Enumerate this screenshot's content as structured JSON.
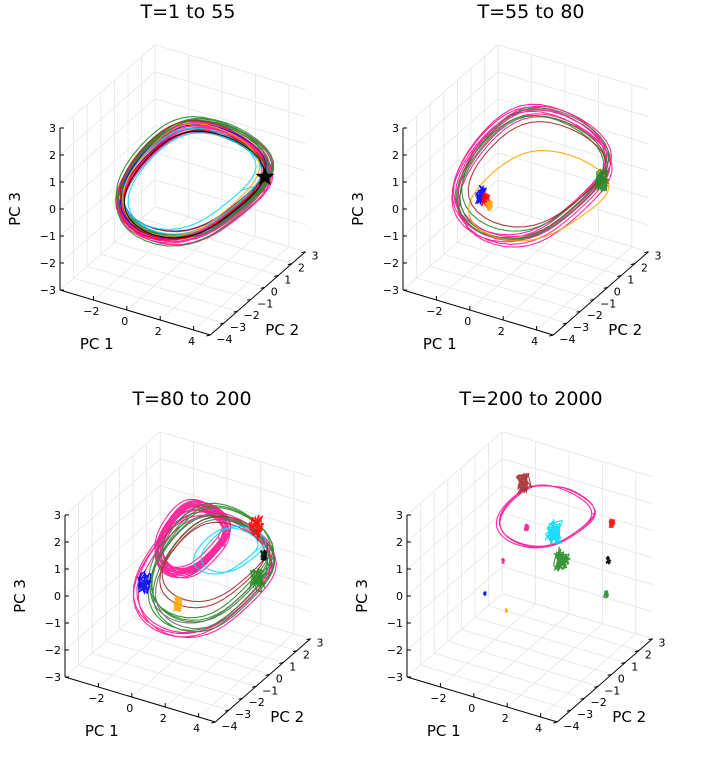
{
  "chart_data": [
    {
      "type": "line3d",
      "title": "T=1 to 55",
      "xlabel": "PC 1",
      "ylabel": "PC 2",
      "zlabel": "PC 3",
      "xlim": [
        -4,
        5
      ],
      "ylim": [
        -4,
        3
      ],
      "zlim": [
        -3,
        3
      ],
      "xticks": [
        -2,
        0,
        2,
        4
      ],
      "yticks": [
        -4,
        -3,
        -2,
        -1,
        0,
        1,
        2,
        3
      ],
      "zticks": [
        -3,
        -2,
        -1,
        0,
        1,
        2,
        3
      ],
      "xtick_labels": [
        "−2",
        "0",
        "2",
        "4"
      ],
      "ytick_labels": [
        "−4",
        "−3",
        "−2",
        "−1",
        "0",
        "1",
        "2",
        "3"
      ],
      "ztick_labels": [
        "−3",
        "−2",
        "−1",
        "0",
        "1",
        "2",
        "3"
      ],
      "grid": true,
      "marker": {
        "symbol": "star",
        "color": "#000000",
        "x": 4.2,
        "y": 1.0,
        "z": 0.5
      },
      "series": [
        {
          "color": "#ff1493",
          "loops": 14,
          "center": [
            0.8,
            0,
            0.1
          ],
          "rx": 3.2,
          "ry": 1.6,
          "rz": 1.6
        },
        {
          "color": "#228b22",
          "loops": 6,
          "center": [
            0.8,
            0,
            0.1
          ],
          "rx": 3.3,
          "ry": 1.5,
          "rz": 1.7
        },
        {
          "color": "#0000ff",
          "loops": 2,
          "center": [
            0.9,
            0,
            0.2
          ],
          "rx": 3.1,
          "ry": 1.5,
          "rz": 1.5
        },
        {
          "color": "#ff0000",
          "loops": 2,
          "center": [
            0.7,
            0,
            0.1
          ],
          "rx": 3.0,
          "ry": 1.6,
          "rz": 1.5
        },
        {
          "color": "#a52a2a",
          "loops": 2,
          "center": [
            0.8,
            0,
            0.2
          ],
          "rx": 3.2,
          "ry": 1.4,
          "rz": 1.6
        },
        {
          "color": "#00d8ff",
          "loops": 2,
          "center": [
            0.6,
            0,
            0.3
          ],
          "rx": 2.8,
          "ry": 1.5,
          "rz": 1.4
        },
        {
          "color": "#ffa500",
          "loops": 1,
          "center": [
            0.7,
            0,
            0.0
          ],
          "rx": 2.9,
          "ry": 1.5,
          "rz": 1.6
        },
        {
          "color": "#000000",
          "loops": 1,
          "center": [
            0.9,
            0,
            0.1
          ],
          "rx": 3.0,
          "ry": 1.5,
          "rz": 1.5
        }
      ]
    },
    {
      "type": "line3d",
      "title": "T=55 to 80",
      "xlabel": "PC 1",
      "ylabel": "PC 2",
      "zlabel": "PC 3",
      "xlim": [
        -4,
        5
      ],
      "ylim": [
        -4,
        3
      ],
      "zlim": [
        -3,
        3
      ],
      "xticks": [
        -2,
        0,
        2,
        4
      ],
      "yticks": [
        -4,
        -3,
        -2,
        -1,
        0,
        1,
        2,
        3
      ],
      "zticks": [
        -3,
        -2,
        -1,
        0,
        1,
        2,
        3
      ],
      "xtick_labels": [
        "−2",
        "0",
        "2",
        "4"
      ],
      "ytick_labels": [
        "−4",
        "−3",
        "−2",
        "−1",
        "0",
        "1",
        "2",
        "3"
      ],
      "ztick_labels": [
        "−3",
        "−2",
        "−1",
        "0",
        "1",
        "2",
        "3"
      ],
      "grid": true,
      "series": [
        {
          "color": "#ff1493",
          "loops": 8,
          "center": [
            0.5,
            0,
            0.3
          ],
          "rx": 3.3,
          "ry": 1.6,
          "rz": 1.9
        },
        {
          "color": "#228b22",
          "loops": 3,
          "center": [
            0.6,
            0,
            0.4
          ],
          "rx": 3.2,
          "ry": 1.5,
          "rz": 1.8
        },
        {
          "color": "#ffa500",
          "loops": 1,
          "center": [
            0.8,
            0,
            -0.3
          ],
          "rx": 3.0,
          "ry": 1.5,
          "rz": 1.2
        },
        {
          "color": "#a52a2a",
          "loops": 1,
          "center": [
            0.7,
            0,
            0.2
          ],
          "rx": 3.0,
          "ry": 1.4,
          "rz": 1.5
        },
        {
          "color": "#0000ff",
          "cluster": [
            -2.6,
            0,
            -1.0
          ],
          "spread": 0.25
        },
        {
          "color": "#ff0000",
          "cluster": [
            -2.3,
            0,
            -1.1
          ],
          "spread": 0.2
        },
        {
          "color": "#ffa500",
          "cluster": [
            -2.1,
            0,
            -1.3
          ],
          "spread": 0.15
        },
        {
          "color": "#228b22",
          "cluster": [
            4.3,
            0.5,
            0.6
          ],
          "spread": 0.3
        }
      ]
    },
    {
      "type": "line3d",
      "title": "T=80 to 200",
      "xlabel": "PC 1",
      "ylabel": "PC 2",
      "zlabel": "PC 3",
      "xlim": [
        -4,
        5
      ],
      "ylim": [
        -4,
        3
      ],
      "zlim": [
        -3,
        3
      ],
      "xticks": [
        -2,
        0,
        2,
        4
      ],
      "yticks": [
        -4,
        -3,
        -2,
        -1,
        0,
        1,
        2,
        3
      ],
      "zticks": [
        -3,
        -2,
        -1,
        0,
        1,
        2,
        3
      ],
      "xtick_labels": [
        "−2",
        "0",
        "2",
        "4"
      ],
      "ytick_labels": [
        "−4",
        "−3",
        "−2",
        "−1",
        "0",
        "1",
        "2",
        "3"
      ],
      "ztick_labels": [
        "−3",
        "−2",
        "−1",
        "0",
        "1",
        "2",
        "3"
      ],
      "grid": true,
      "series": [
        {
          "color": "#ff1493",
          "loops": 18,
          "center": [
            0.4,
            0,
            1.1
          ],
          "rx": 1.4,
          "ry": 0.8,
          "rz": 1.0
        },
        {
          "color": "#ff1493",
          "loops": 4,
          "center": [
            1.2,
            0,
            0.0
          ],
          "rx": 3.0,
          "ry": 1.4,
          "rz": 1.8
        },
        {
          "color": "#228b22",
          "loops": 5,
          "center": [
            1.6,
            0,
            0.3
          ],
          "rx": 2.6,
          "ry": 1.3,
          "rz": 1.7
        },
        {
          "color": "#696969",
          "loops": 2,
          "center": [
            1.6,
            0,
            0.2
          ],
          "rx": 2.5,
          "ry": 1.3,
          "rz": 1.6
        },
        {
          "color": "#a52a2a",
          "loops": 2,
          "center": [
            1.8,
            0,
            0.6
          ],
          "rx": 2.2,
          "ry": 1.2,
          "rz": 1.2
        },
        {
          "color": "#00d8ff",
          "loops": 2,
          "center": [
            2.6,
            0,
            1.0
          ],
          "rx": 1.3,
          "ry": 0.8,
          "rz": 0.6
        },
        {
          "color": "#0000ff",
          "cluster": [
            -2.5,
            0,
            -1.0
          ],
          "spread": 0.3
        },
        {
          "color": "#ffa500",
          "cluster": [
            -0.5,
            0,
            -1.4
          ],
          "spread": 0.2
        },
        {
          "color": "#ff0000",
          "cluster": [
            3.2,
            1.2,
            1.6
          ],
          "spread": 0.3
        },
        {
          "color": "#000000",
          "cluster": [
            4.0,
            0.8,
            0.9
          ],
          "spread": 0.15
        },
        {
          "color": "#228b22",
          "cluster": [
            4.1,
            0.2,
            0.3
          ],
          "spread": 0.35
        }
      ]
    },
    {
      "type": "line3d",
      "title": "T=200 to 2000",
      "xlabel": "PC 1",
      "ylabel": "PC 2",
      "zlabel": "PC 3",
      "xlim": [
        -4,
        5
      ],
      "ylim": [
        -4,
        3
      ],
      "zlim": [
        -3,
        3
      ],
      "xticks": [
        -2,
        0,
        2,
        4
      ],
      "yticks": [
        -4,
        -3,
        -2,
        -1,
        0,
        1,
        2,
        3
      ],
      "zticks": [
        -3,
        -2,
        -1,
        0,
        1,
        2,
        3
      ],
      "xtick_labels": [
        "−2",
        "0",
        "2",
        "4"
      ],
      "ytick_labels": [
        "−4",
        "−3",
        "−2",
        "−1",
        "0",
        "1",
        "2",
        "3"
      ],
      "ztick_labels": [
        "−3",
        "−2",
        "−1",
        "0",
        "1",
        "2",
        "3"
      ],
      "grid": true,
      "series": [
        {
          "color": "#ff1493",
          "loops": 3,
          "center": [
            1.0,
            0,
            2.0
          ],
          "rx": 2.2,
          "ry": 0.8,
          "rz": 0.9
        },
        {
          "color": "#a52a2a",
          "cluster": [
            -0.3,
            0,
            3.1
          ],
          "spread": 0.3
        },
        {
          "color": "#00d8ff",
          "cluster": [
            1.5,
            0,
            1.6
          ],
          "spread": 0.35
        },
        {
          "color": "#228b22",
          "cluster": [
            2.0,
            0,
            0.7
          ],
          "spread": 0.35
        },
        {
          "color": "#ff0000",
          "cluster": [
            4.2,
            1.0,
            2.0
          ],
          "spread": 0.12
        },
        {
          "color": "#000000",
          "cluster": [
            4.4,
            0.5,
            0.9
          ],
          "spread": 0.1
        },
        {
          "color": "#228b22",
          "cluster": [
            4.5,
            0.2,
            -0.2
          ],
          "spread": 0.1
        },
        {
          "color": "#ff1493",
          "cluster": [
            -1.5,
            0,
            0.0
          ],
          "spread": 0.07
        },
        {
          "color": "#ff1493",
          "cluster": [
            -0.1,
            0,
            1.5
          ],
          "spread": 0.1
        },
        {
          "color": "#0000ff",
          "cluster": [
            -2.6,
            0,
            -1.4
          ],
          "spread": 0.05
        },
        {
          "color": "#ffa500",
          "cluster": [
            -1.3,
            0,
            -1.8
          ],
          "spread": 0.05
        }
      ]
    }
  ]
}
